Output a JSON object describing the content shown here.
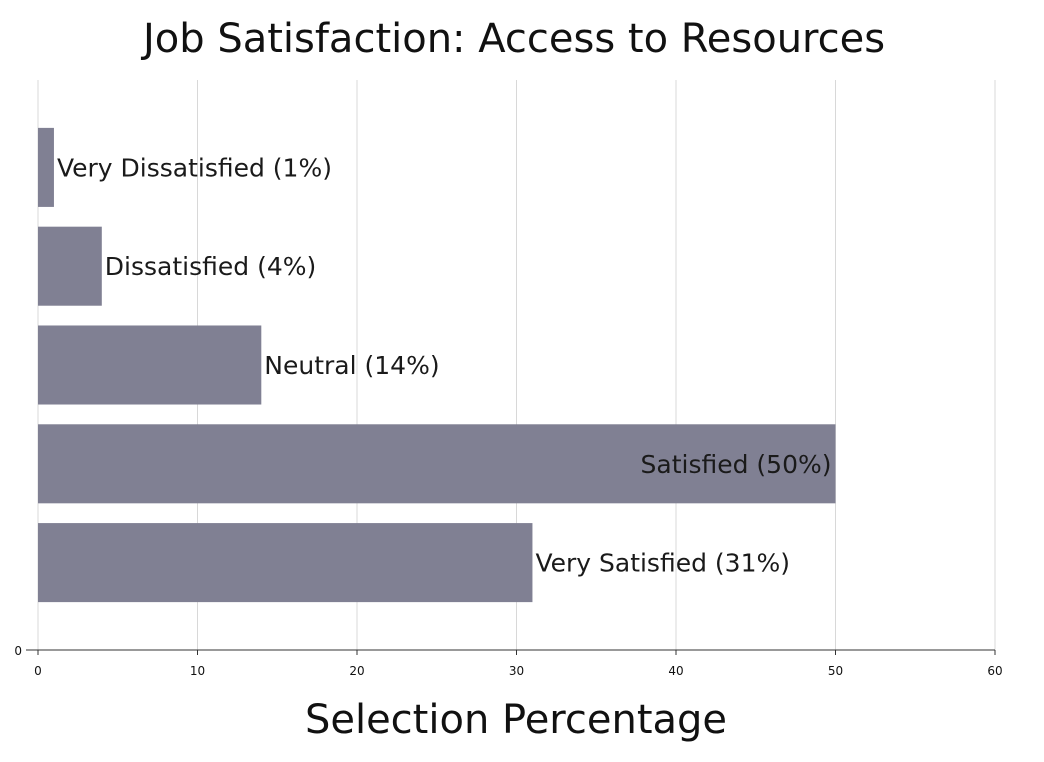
{
  "chart_data": {
    "type": "bar",
    "orientation": "horizontal",
    "title": "Job Satisfaction: Access to Resources",
    "xlabel": "Selection Percentage",
    "ylabel": "",
    "categories": [
      "Very Dissatisfied",
      "Dissatisfied",
      "Neutral",
      "Satisfied",
      "Very Satisfied"
    ],
    "values": [
      1,
      4,
      14,
      50,
      31
    ],
    "data_labels": [
      "Very Dissatisfied (1%)",
      "Dissatisfied (4%)",
      "Neutral (14%)",
      "Satisfied (50%)",
      "Very Satisfied (31%)"
    ],
    "xlim": [
      0,
      60
    ],
    "x_ticks": [
      "0",
      "10",
      "20",
      "30",
      "40",
      "50",
      "60"
    ],
    "y_tick_label": "0",
    "grid": true,
    "legend": "none",
    "colors": {
      "bar": "#808093"
    }
  }
}
